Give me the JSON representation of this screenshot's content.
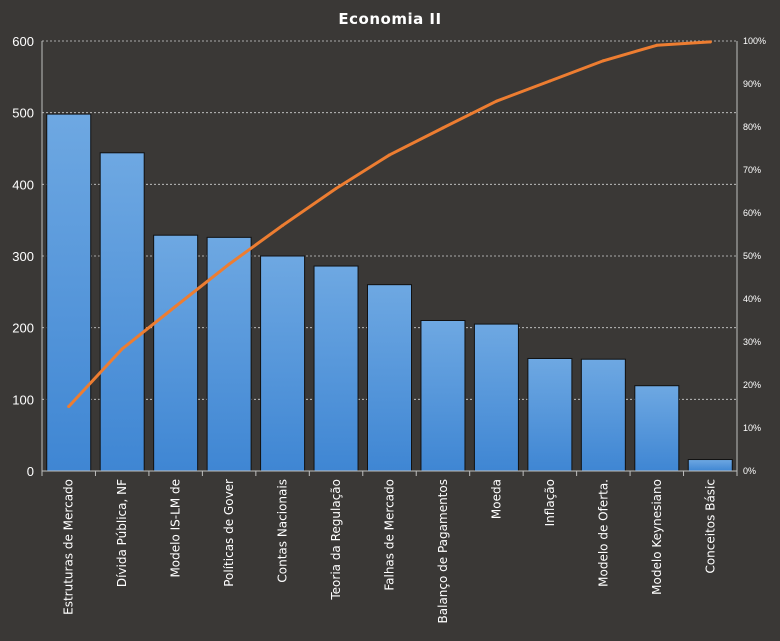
{
  "chart_data": {
    "type": "bar",
    "title": "Economia II",
    "categories": [
      "Estruturas de Mercado",
      "Dívida Pública, NF",
      "Modelo IS-LM de",
      "Políticas de Gover",
      "Contas Nacionais",
      "Teoria da Regulação",
      "Falhas de Mercado",
      "Balanço de Pagamentos",
      "Moeda",
      "Inflação",
      "Modelo de Oferta.",
      "Modelo Keynesiano",
      "Conceitos Básic"
    ],
    "series": [
      {
        "type": "bar",
        "values": [
          498,
          444,
          329,
          326,
          300,
          286,
          260,
          210,
          205,
          157,
          156,
          119,
          16
        ]
      },
      {
        "type": "line",
        "axis": "secondary",
        "values": [
          0.15,
          0.284,
          0.383,
          0.481,
          0.571,
          0.657,
          0.735,
          0.798,
          0.86,
          0.907,
          0.954,
          0.99,
          0.998
        ]
      }
    ],
    "ylim": [
      0,
      600
    ],
    "yticks": [
      "0",
      "100",
      "200",
      "300",
      "400",
      "500",
      "600"
    ],
    "y2lim": [
      0,
      1
    ],
    "y2ticks": [
      "0%",
      "10%",
      "20%",
      "30%",
      "40%",
      "50%",
      "60%",
      "70%",
      "80%",
      "90%",
      "100%"
    ],
    "grid": true,
    "legend": "none",
    "colors": {
      "background": "#3a3836",
      "bar_top": "#6ea8e2",
      "bar_bottom": "#3f86d3",
      "line": "#ed7d31",
      "grid": "#d0d0d0",
      "text": "#ffffff"
    }
  }
}
